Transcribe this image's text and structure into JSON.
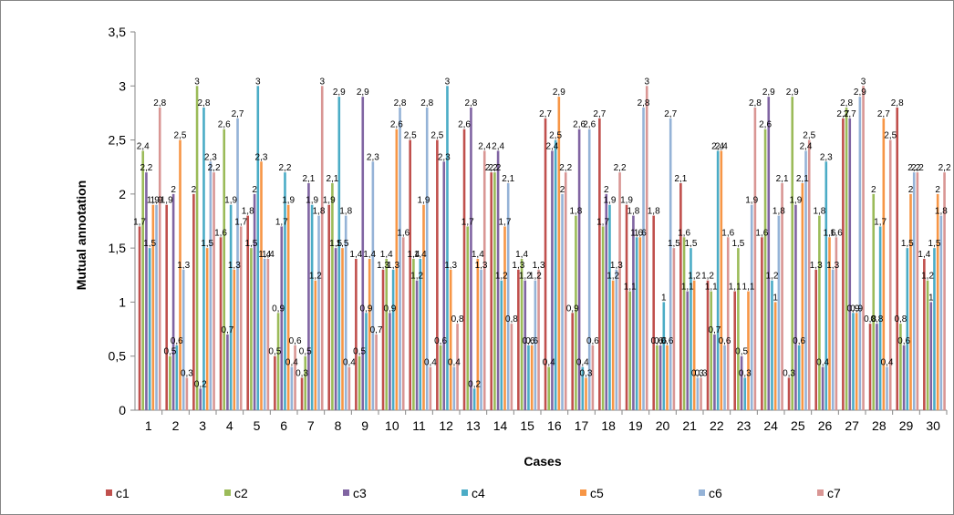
{
  "chart_data": {
    "type": "bar",
    "xlabel": "Cases",
    "ylabel": "Mutual annotation",
    "ylim": [
      0,
      3.5
    ],
    "yticks": [
      "0",
      "0,5",
      "1",
      "1,5",
      "2",
      "2,5",
      "3",
      "3,5"
    ],
    "grid": false,
    "legend_position": "bottom",
    "categories": [
      "1",
      "2",
      "3",
      "4",
      "5",
      "6",
      "7",
      "8",
      "9",
      "10",
      "11",
      "12",
      "13",
      "14",
      "15",
      "16",
      "17",
      "18",
      "19",
      "20",
      "21",
      "22",
      "23",
      "24",
      "25",
      "26",
      "27",
      "28",
      "29",
      "30"
    ],
    "series": [
      {
        "name": "c1",
        "color": "#C0504D",
        "values": [
          1.7,
          1.9,
          2.0,
          1.6,
          1.8,
          0.5,
          0.3,
          1.9,
          1.4,
          1.3,
          2.5,
          2.5,
          2.6,
          2.2,
          1.3,
          2.7,
          0.9,
          2.7,
          1.9,
          1.8,
          2.1,
          1.2,
          1.1,
          1.6,
          0.3,
          1.3,
          2.7,
          0.8,
          2.8,
          1.4
        ]
      },
      {
        "name": "c2",
        "color": "#9BBB59",
        "values": [
          2.4,
          0.5,
          3.0,
          2.6,
          1.5,
          0.9,
          0.5,
          2.1,
          0.5,
          1.4,
          1.4,
          0.6,
          1.7,
          2.2,
          1.4,
          0.4,
          1.8,
          1.7,
          1.1,
          0.6,
          1.6,
          1.1,
          1.5,
          2.6,
          2.9,
          1.8,
          2.8,
          2.0,
          0.8,
          1.2
        ]
      },
      {
        "name": "c3",
        "color": "#8064A2",
        "values": [
          2.2,
          2.0,
          0.2,
          0.7,
          2.0,
          1.7,
          2.1,
          1.5,
          2.9,
          0.9,
          1.2,
          2.3,
          2.8,
          2.4,
          1.2,
          2.4,
          2.6,
          2.0,
          1.8,
          0.6,
          1.1,
          0.7,
          0.5,
          2.9,
          1.9,
          0.4,
          2.7,
          0.8,
          0.6,
          1.0
        ]
      },
      {
        "name": "c4",
        "color": "#4BACC6",
        "values": [
          1.5,
          0.6,
          2.8,
          1.9,
          3.0,
          2.2,
          1.9,
          2.9,
          0.9,
          1.3,
          1.4,
          3.0,
          0.2,
          1.2,
          0.6,
          2.5,
          0.4,
          1.9,
          1.6,
          1.0,
          1.5,
          2.4,
          0.3,
          1.2,
          0.6,
          2.3,
          0.9,
          1.7,
          1.5,
          1.5
        ]
      },
      {
        "name": "c5",
        "color": "#F79646",
        "values": [
          1.9,
          2.5,
          1.5,
          1.3,
          2.3,
          1.9,
          1.2,
          1.5,
          1.4,
          2.6,
          1.9,
          1.3,
          1.4,
          1.7,
          0.6,
          2.9,
          0.3,
          1.2,
          1.6,
          0.6,
          1.2,
          2.4,
          1.1,
          1.0,
          2.1,
          1.6,
          0.9,
          2.7,
          2.0,
          2.0
        ]
      },
      {
        "name": "c6",
        "color": "#95B3D7",
        "values": [
          1.9,
          1.3,
          2.3,
          2.7,
          1.4,
          0.4,
          1.8,
          1.8,
          2.3,
          2.8,
          2.8,
          0.4,
          1.3,
          2.1,
          1.2,
          2.0,
          2.6,
          1.3,
          2.8,
          2.7,
          0.3,
          0.6,
          1.9,
          1.8,
          2.4,
          1.3,
          2.9,
          0.4,
          2.2,
          1.8
        ]
      },
      {
        "name": "c7",
        "color": "#D99694",
        "values": [
          2.8,
          0.3,
          2.2,
          1.7,
          1.4,
          0.6,
          3.0,
          0.4,
          0.7,
          1.6,
          0.4,
          0.8,
          2.4,
          0.8,
          1.3,
          2.2,
          0.6,
          2.2,
          3.0,
          1.5,
          0.3,
          1.6,
          2.8,
          2.1,
          2.5,
          1.6,
          3.0,
          2.5,
          2.2,
          2.2
        ]
      }
    ]
  }
}
